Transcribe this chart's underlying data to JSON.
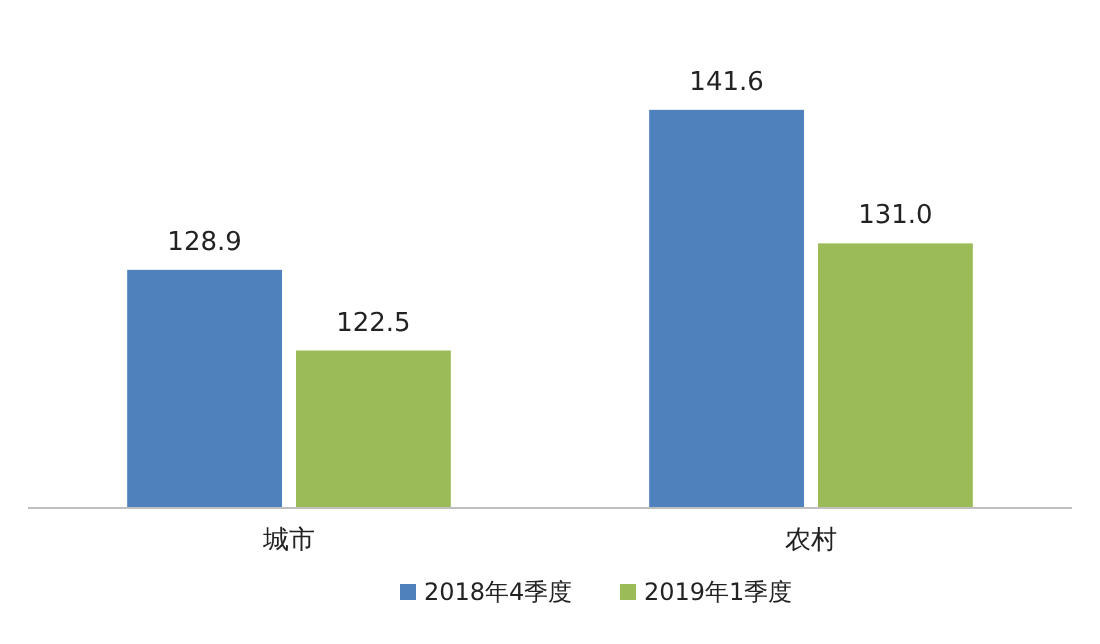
{
  "chart_data": {
    "type": "bar",
    "categories": [
      "城市",
      "农村"
    ],
    "series": [
      {
        "name": "2018年4季度",
        "color": "#4f81bd",
        "values": [
          128.9,
          141.6
        ],
        "value_labels": [
          "128.9",
          "141.6"
        ]
      },
      {
        "name": "2019年1季度",
        "color": "#9bbb59",
        "values": [
          122.5,
          131.0
        ],
        "value_labels": [
          "122.5",
          "131.0"
        ]
      }
    ],
    "ylim": [
      110,
      150
    ],
    "legend": "bottom",
    "grid": false
  }
}
